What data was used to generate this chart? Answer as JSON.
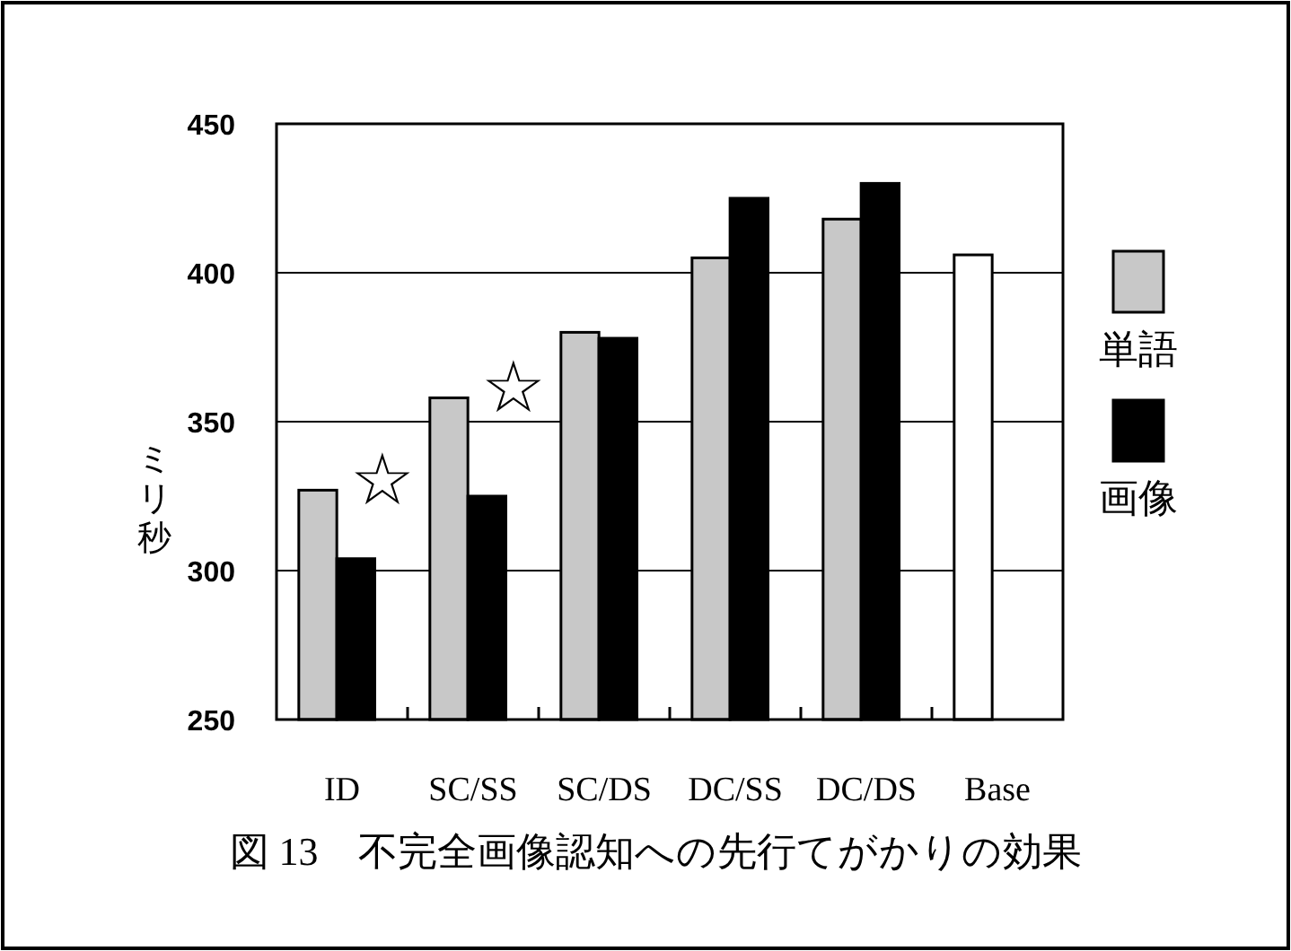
{
  "chart_data": {
    "type": "bar",
    "title": "図 13　不完全画像認知への先行てがかりの効果",
    "ylabel": "ミリ秒",
    "categories": [
      "ID",
      "SC/SS",
      "SC/DS",
      "DC/SS",
      "DC/DS",
      "Base"
    ],
    "series": [
      {
        "name": "単語",
        "color": "#c8c8c8",
        "colors": [
          "#c8c8c8",
          "#c8c8c8",
          "#c8c8c8",
          "#c8c8c8",
          "#c8c8c8",
          "#ffffff"
        ],
        "values": [
          327,
          358,
          380,
          405,
          418,
          406
        ]
      },
      {
        "name": "画像",
        "color": "#000000",
        "values": [
          304,
          325,
          378,
          425,
          430,
          null
        ]
      }
    ],
    "ylim": [
      250,
      450
    ],
    "yticks": [
      250,
      300,
      350,
      400,
      450
    ],
    "grid": "y",
    "legend": "right",
    "annotations": [
      "☆",
      "☆"
    ]
  }
}
